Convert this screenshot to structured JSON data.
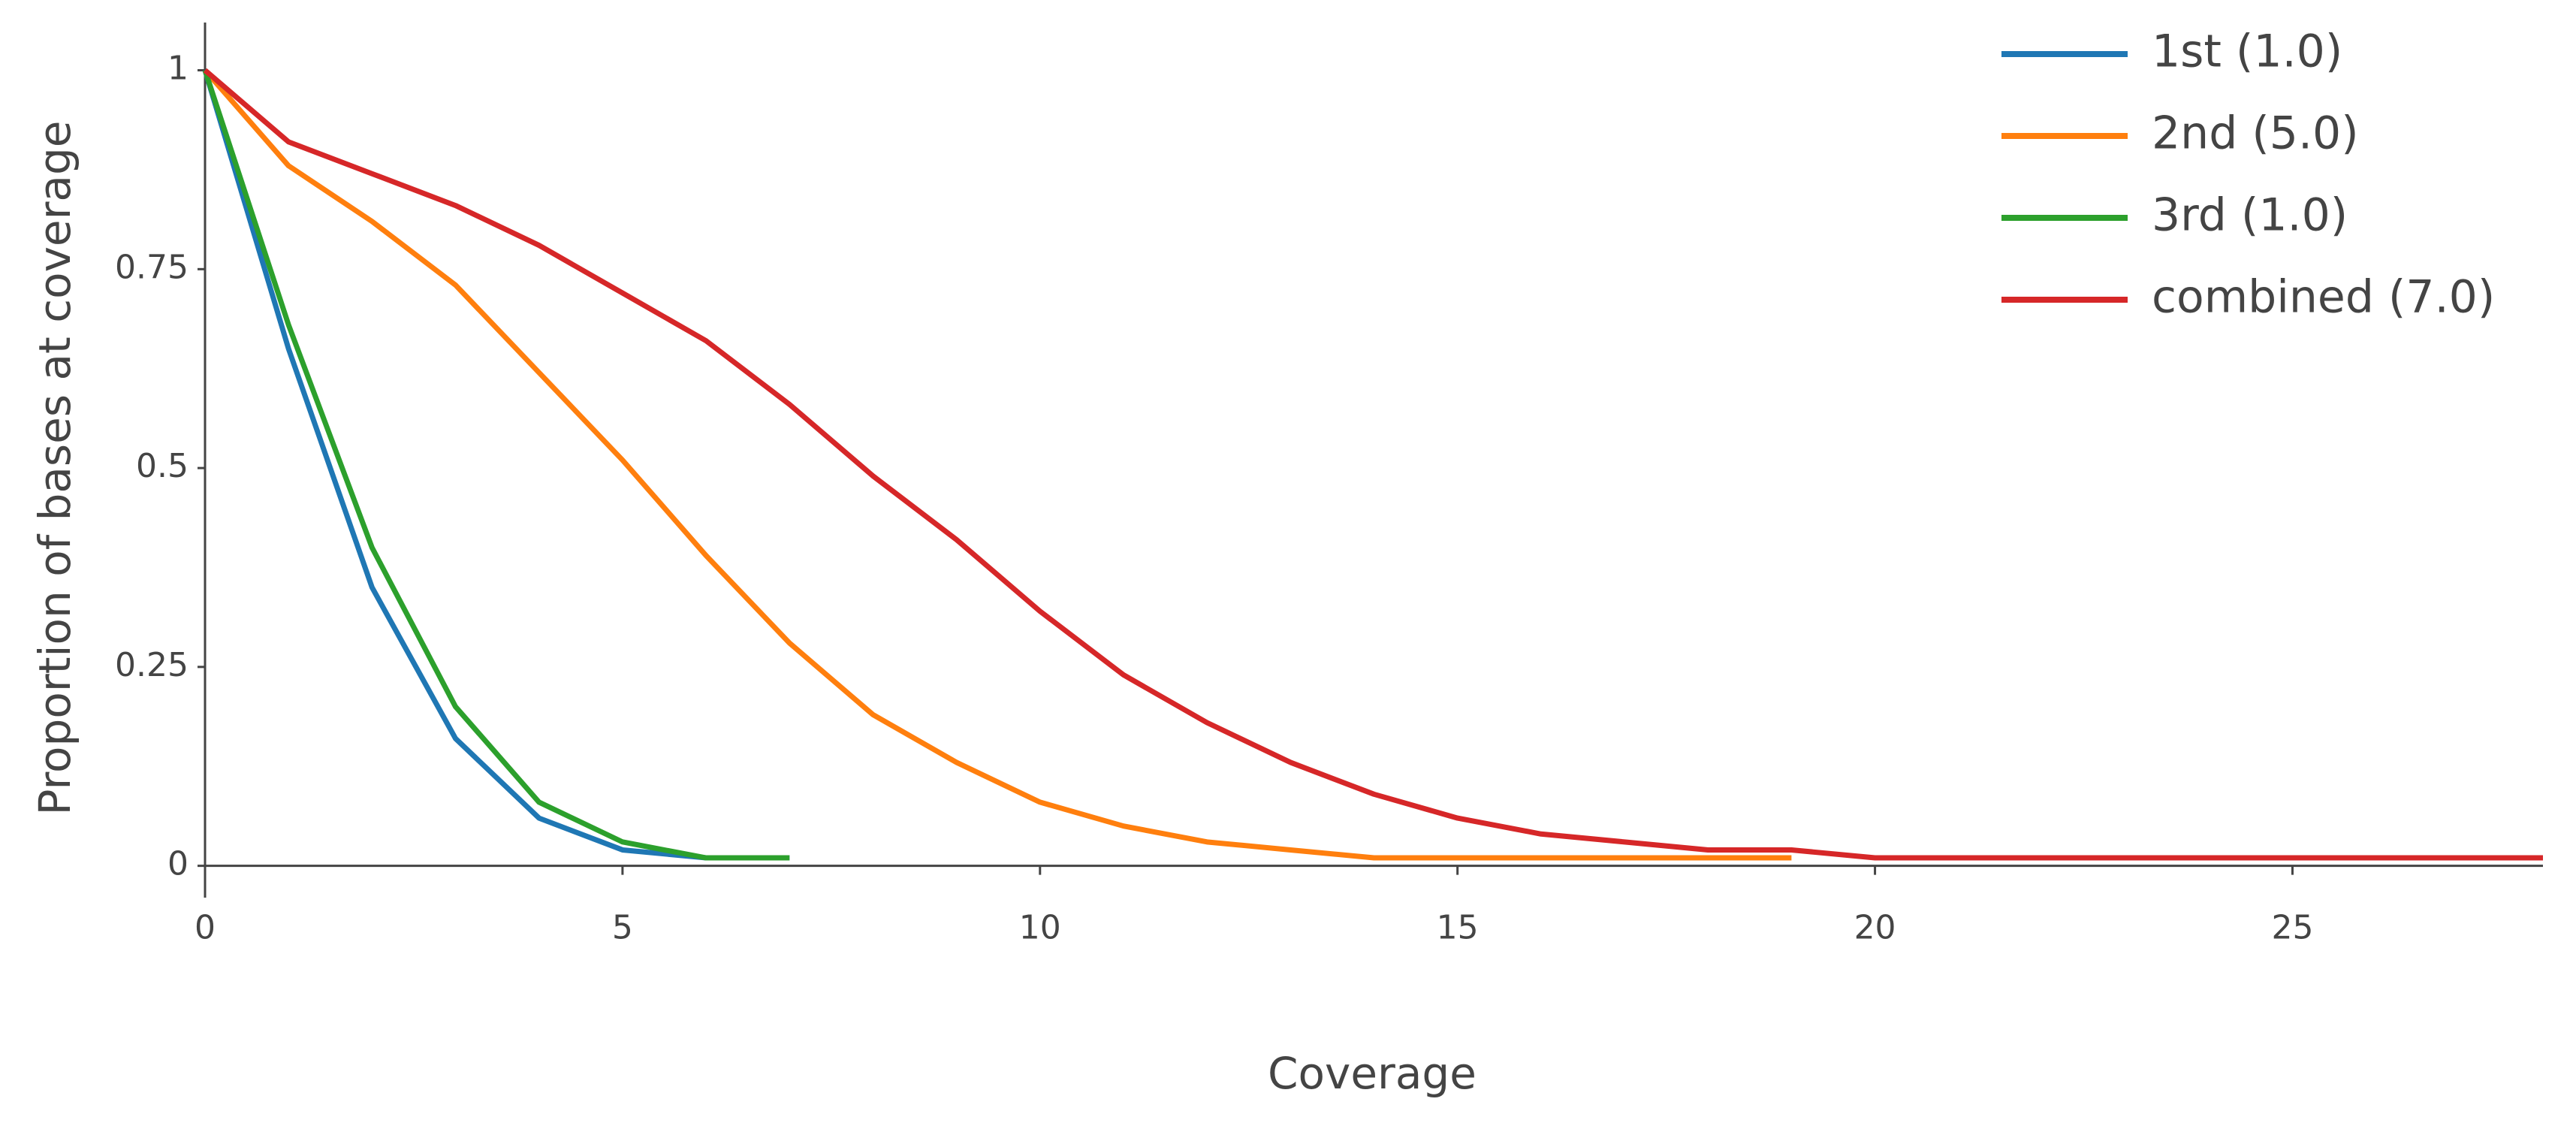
{
  "chart_data": {
    "type": "line",
    "x_label": "Coverage",
    "y_label": "Proportion of bases at coverage",
    "x": [
      0,
      1,
      2,
      3,
      4,
      5,
      6,
      7,
      8,
      9,
      10,
      11,
      12,
      13,
      14,
      15,
      16,
      17,
      18,
      19,
      20,
      21,
      22,
      23,
      24,
      25,
      26,
      27,
      28
    ],
    "series": [
      {
        "name": "1st (1.0)",
        "color": "#1f77b4",
        "values": [
          1,
          0.65,
          0.35,
          0.16,
          0.06,
          0.02,
          0.01,
          0.01,
          null,
          null,
          null,
          null,
          null,
          null,
          null,
          null,
          null,
          null,
          null,
          null,
          null,
          null,
          null,
          null,
          null,
          null,
          null,
          null,
          null
        ]
      },
      {
        "name": "2nd (5.0)",
        "color": "#ff7f0e",
        "values": [
          1,
          0.88,
          0.81,
          0.73,
          0.62,
          0.51,
          0.39,
          0.28,
          0.19,
          0.13,
          0.08,
          0.05,
          0.03,
          0.02,
          0.01,
          0.01,
          0.01,
          0.01,
          0.01,
          0.01,
          null,
          null,
          null,
          null,
          null,
          null,
          null,
          null,
          null
        ]
      },
      {
        "name": "3rd (1.0)",
        "color": "#2ca02c",
        "values": [
          1,
          0.68,
          0.4,
          0.2,
          0.08,
          0.03,
          0.01,
          0.01,
          null,
          null,
          null,
          null,
          null,
          null,
          null,
          null,
          null,
          null,
          null,
          null,
          null,
          null,
          null,
          null,
          null,
          null,
          null,
          null,
          null
        ]
      },
      {
        "name": "combined (7.0)",
        "color": "#d62728",
        "values": [
          1,
          0.91,
          0.87,
          0.83,
          0.78,
          0.72,
          0.66,
          0.58,
          0.49,
          0.41,
          0.32,
          0.24,
          0.18,
          0.13,
          0.09,
          0.06,
          0.04,
          0.03,
          0.02,
          0.02,
          0.01,
          0.01,
          0.01,
          0.01,
          0.01,
          0.01,
          0.01,
          0.01,
          0.01
        ]
      }
    ],
    "xlim": [
      0,
      28
    ],
    "ylim": [
      -0.04,
      1.06
    ],
    "xticks": [
      0,
      5,
      10,
      15,
      20,
      25
    ],
    "yticks": [
      0,
      0.25,
      0.5,
      0.75,
      1
    ],
    "legend": "top-right"
  }
}
